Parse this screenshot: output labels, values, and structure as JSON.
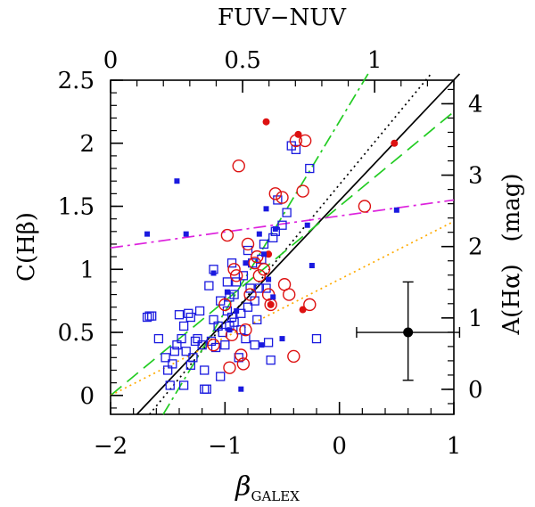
{
  "chart_data": {
    "type": "scatter",
    "axes": {
      "bottom": {
        "label": "β",
        "label_subscript": "GALEX",
        "range": [
          -2,
          1
        ],
        "ticks": [
          -2,
          -1,
          0,
          1
        ],
        "tick_labels": [
          "−2",
          "−1",
          "0",
          "1"
        ]
      },
      "left": {
        "label": "C(Hβ)",
        "range": [
          -0.15,
          2.5
        ],
        "ticks": [
          0,
          0.5,
          1,
          1.5,
          2,
          2.5
        ],
        "tick_labels": [
          "0",
          "0.5",
          "1",
          "1.5",
          "2",
          "2.5"
        ]
      },
      "top": {
        "label": "FUV−NUV",
        "range": [
          0,
          1.3
        ],
        "ticks": [
          0,
          0.5,
          1
        ],
        "tick_labels": [
          "0",
          "0.5",
          "1"
        ]
      },
      "right": {
        "label": "A(Hα)   (mag)",
        "range": [
          -0.35,
          4.33
        ],
        "ticks": [
          0,
          1,
          2,
          3,
          4
        ],
        "tick_labels": [
          "0",
          "1",
          "2",
          "3",
          "4"
        ]
      }
    },
    "series": [
      {
        "name": "open blue squares",
        "marker": "open-square",
        "color": "#1a1adf",
        "points": [
          [
            -1.68,
            0.62
          ],
          [
            -1.66,
            0.63
          ],
          [
            -1.64,
            0.63
          ],
          [
            -1.58,
            0.45
          ],
          [
            -1.52,
            0.3
          ],
          [
            -1.48,
            0.08
          ],
          [
            -1.46,
            0.25
          ],
          [
            -1.44,
            0.35
          ],
          [
            -1.42,
            0.4
          ],
          [
            -1.4,
            0.64
          ],
          [
            -1.38,
            0.45
          ],
          [
            -1.36,
            0.55
          ],
          [
            -1.34,
            0.35
          ],
          [
            -1.32,
            0.65
          ],
          [
            -1.3,
            0.24
          ],
          [
            -1.28,
            0.3
          ],
          [
            -1.26,
            0.43
          ],
          [
            -1.24,
            0.45
          ],
          [
            -1.22,
            0.67
          ],
          [
            -1.2,
            0.4
          ],
          [
            -1.18,
            0.2
          ],
          [
            -1.16,
            0.05
          ],
          [
            -1.14,
            0.87
          ],
          [
            -1.12,
            0.43
          ],
          [
            -1.1,
            0.6
          ],
          [
            -1.08,
            0.38
          ],
          [
            -1.06,
            0.55
          ],
          [
            -1.04,
            0.75
          ],
          [
            -1.02,
            0.5
          ],
          [
            -1.0,
            0.4
          ],
          [
            -0.98,
            0.67
          ],
          [
            -0.96,
            0.55
          ],
          [
            -0.94,
            0.62
          ],
          [
            -0.92,
            0.8
          ],
          [
            -0.9,
            0.9
          ],
          [
            -0.88,
            0.3
          ],
          [
            -0.86,
            0.65
          ],
          [
            -0.84,
            0.95
          ],
          [
            -0.82,
            0.45
          ],
          [
            -0.8,
            1.15
          ],
          [
            -0.78,
            0.85
          ],
          [
            -0.76,
            1.05
          ],
          [
            -0.74,
            0.4
          ],
          [
            -0.72,
            0.6
          ],
          [
            -0.7,
            0.85
          ],
          [
            -0.68,
            1.08
          ],
          [
            -0.66,
            1.2
          ],
          [
            -0.64,
            0.85
          ],
          [
            -0.62,
            0.42
          ],
          [
            -0.6,
            0.28
          ],
          [
            -0.58,
            1.25
          ],
          [
            -0.56,
            1.3
          ],
          [
            -0.54,
            1.55
          ],
          [
            -0.5,
            1.35
          ],
          [
            -0.46,
            1.45
          ],
          [
            -0.42,
            1.98
          ],
          [
            -0.38,
            1.95
          ],
          [
            -0.26,
            1.8
          ],
          [
            -0.2,
            0.45
          ],
          [
            -1.36,
            0.08
          ],
          [
            -1.1,
            1.0
          ],
          [
            -0.98,
            0.9
          ],
          [
            -0.96,
            0.78
          ],
          [
            -1.3,
            0.62
          ],
          [
            -1.18,
            0.05
          ],
          [
            -0.92,
            0.58
          ],
          [
            -0.86,
            0.52
          ],
          [
            -0.8,
            0.7
          ],
          [
            -0.74,
            0.75
          ],
          [
            -1.5,
            0.2
          ],
          [
            -1.04,
            0.15
          ],
          [
            -0.94,
            1.05
          ]
        ]
      },
      {
        "name": "open red circles",
        "marker": "open-circle",
        "color": "#dd1111",
        "points": [
          [
            -1.1,
            0.4
          ],
          [
            -1.0,
            0.72
          ],
          [
            -0.98,
            1.27
          ],
          [
            -0.96,
            0.22
          ],
          [
            -0.94,
            0.48
          ],
          [
            -0.92,
            1.0
          ],
          [
            -0.9,
            0.95
          ],
          [
            -0.88,
            1.82
          ],
          [
            -0.86,
            0.32
          ],
          [
            -0.84,
            0.25
          ],
          [
            -0.82,
            0.52
          ],
          [
            -0.8,
            1.2
          ],
          [
            -0.78,
            0.8
          ],
          [
            -0.74,
            1.05
          ],
          [
            -0.72,
            1.1
          ],
          [
            -0.7,
            0.95
          ],
          [
            -0.66,
            1.0
          ],
          [
            -0.62,
            0.8
          ],
          [
            -0.6,
            0.72
          ],
          [
            -0.56,
            1.6
          ],
          [
            -0.5,
            1.57
          ],
          [
            -0.48,
            0.88
          ],
          [
            -0.44,
            0.8
          ],
          [
            -0.4,
            0.31
          ],
          [
            -0.38,
            2.02
          ],
          [
            -0.32,
            1.62
          ],
          [
            -0.3,
            2.02
          ],
          [
            -0.26,
            0.72
          ],
          [
            0.22,
            1.5
          ]
        ]
      },
      {
        "name": "filled red circles",
        "marker": "filled-circle",
        "color": "#dd1111",
        "points": [
          [
            -0.64,
            2.17
          ],
          [
            -0.62,
            1.12
          ],
          [
            -0.6,
            0.72
          ],
          [
            -0.36,
            2.07
          ],
          [
            -0.32,
            0.68
          ],
          [
            0.48,
            2.0
          ]
        ]
      },
      {
        "name": "filled blue squares",
        "marker": "filled-square",
        "color": "#1a1adf",
        "points": [
          [
            -1.68,
            1.28
          ],
          [
            -1.42,
            1.7
          ],
          [
            -1.34,
            1.28
          ],
          [
            -1.1,
            0.97
          ],
          [
            -0.98,
            0.82
          ],
          [
            -0.96,
            0.52
          ],
          [
            -0.9,
            0.67
          ],
          [
            -0.82,
            1.05
          ],
          [
            -0.7,
            1.28
          ],
          [
            -0.66,
            1.12
          ],
          [
            -0.62,
            0.92
          ],
          [
            -0.58,
            0.78
          ],
          [
            -0.56,
            1.32
          ],
          [
            -0.5,
            0.45
          ],
          [
            -0.28,
            1.35
          ],
          [
            -0.24,
            1.03
          ],
          [
            0.5,
            1.47
          ],
          [
            -0.64,
            1.48
          ],
          [
            -0.86,
            0.05
          ],
          [
            -0.68,
            0.4
          ]
        ]
      }
    ],
    "lines": [
      {
        "name": "black solid",
        "style": "solid",
        "color": "#000000",
        "x": [
          -1.77,
          1.05
        ],
        "y": [
          -0.15,
          2.55
        ]
      },
      {
        "name": "black dotted",
        "style": "dotted",
        "color": "#000000",
        "x": [
          -1.66,
          0.8
        ],
        "y": [
          -0.15,
          2.55
        ]
      },
      {
        "name": "green long dashed",
        "style": "dashed",
        "color": "#22cc22",
        "x": [
          -2.0,
          1.0
        ],
        "y": [
          0.0,
          2.25
        ]
      },
      {
        "name": "green dash-dot",
        "style": "dashdot",
        "color": "#22cc22",
        "x": [
          -1.54,
          0.25
        ],
        "y": [
          -0.15,
          2.55
        ]
      },
      {
        "name": "magenta dash-dot",
        "style": "dashdot",
        "color": "#dd22dd",
        "x": [
          -2.0,
          1.0
        ],
        "y": [
          1.17,
          1.55
        ]
      },
      {
        "name": "orange dotted",
        "style": "dotted",
        "color": "#ffaa00",
        "x": [
          -2.0,
          1.0
        ],
        "y": [
          0.0,
          1.38
        ]
      }
    ],
    "error_point": {
      "x": 0.6,
      "y": 0.5,
      "xerr": 0.45,
      "yerr_low": 0.38,
      "yerr_high": 0.4,
      "color": "#000000"
    }
  }
}
